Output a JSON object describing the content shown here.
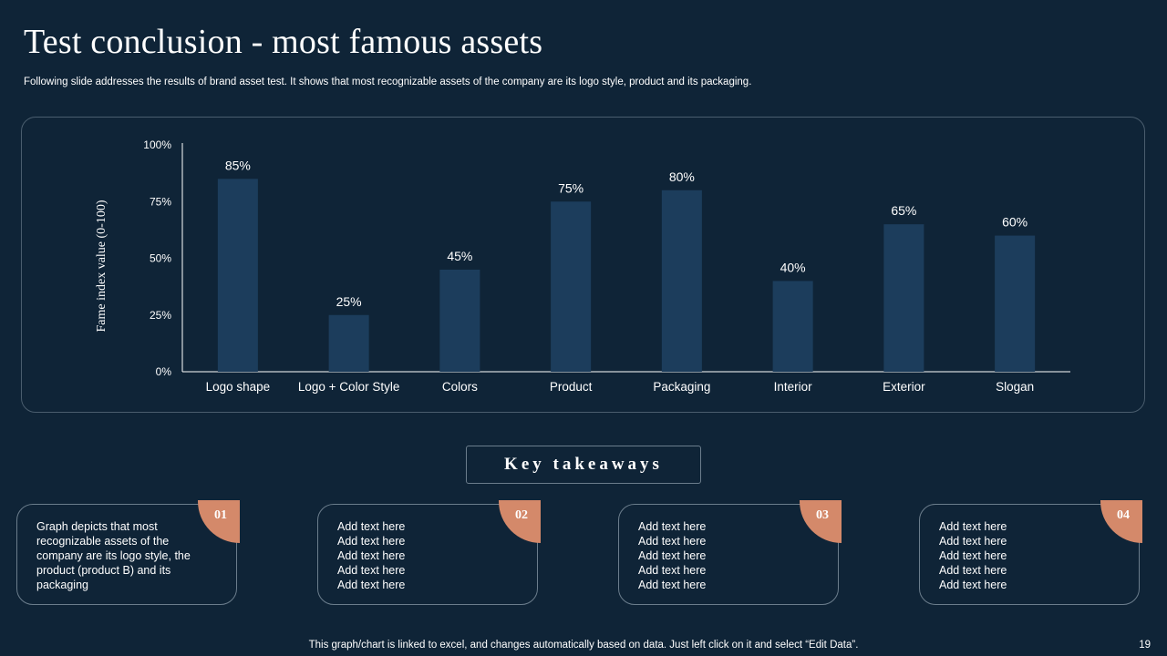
{
  "header": {
    "title": "Test conclusion - most famous assets",
    "subtitle": "Following slide addresses the results of brand asset test. It shows that most recognizable assets of the company are its logo style,  product and its packaging."
  },
  "chart_data": {
    "type": "bar",
    "categories": [
      "Logo shape",
      "Logo + Color Style",
      "Colors",
      "Product",
      "Packaging",
      "Interior",
      "Exterior",
      "Slogan"
    ],
    "values": [
      85,
      25,
      45,
      75,
      80,
      40,
      65,
      60
    ],
    "data_labels": [
      "85%",
      "25%",
      "45%",
      "75%",
      "80%",
      "40%",
      "65%",
      "60%"
    ],
    "ylabel": "Fame index value (0-100)",
    "xlabel": "",
    "ylim": [
      0,
      100
    ],
    "yticks": [
      0,
      25,
      50,
      75,
      100
    ],
    "ytick_labels": [
      "0%",
      "25%",
      "50%",
      "75%",
      "100%"
    ],
    "grid": false,
    "bar_color": "#1c3d5c"
  },
  "takeaways": {
    "title": "Key takeaways",
    "cards": [
      {
        "number": "01",
        "lines": [
          "Graph depicts that most recognizable  assets of the company are its logo style, the product  (product B) and its packaging"
        ]
      },
      {
        "number": "02",
        "lines": [
          "Add text here",
          "Add text here",
          "Add text here",
          "Add text here",
          "Add text here"
        ]
      },
      {
        "number": "03",
        "lines": [
          "Add text here",
          "Add text here",
          "Add text here",
          "Add text here",
          "Add text here"
        ]
      },
      {
        "number": "04",
        "lines": [
          "Add text here",
          "Add text here",
          "Add text here",
          "Add text here",
          "Add text here"
        ]
      }
    ]
  },
  "footer": {
    "note": "This graph/chart is linked to excel,  and changes automatically based on data. Just left click on it and select “Edit Data”.",
    "page_number": "19"
  },
  "colors": {
    "background": "#0f2437",
    "bar": "#1c3d5c",
    "accent": "#d4896a",
    "border": "#6b7d8c"
  }
}
